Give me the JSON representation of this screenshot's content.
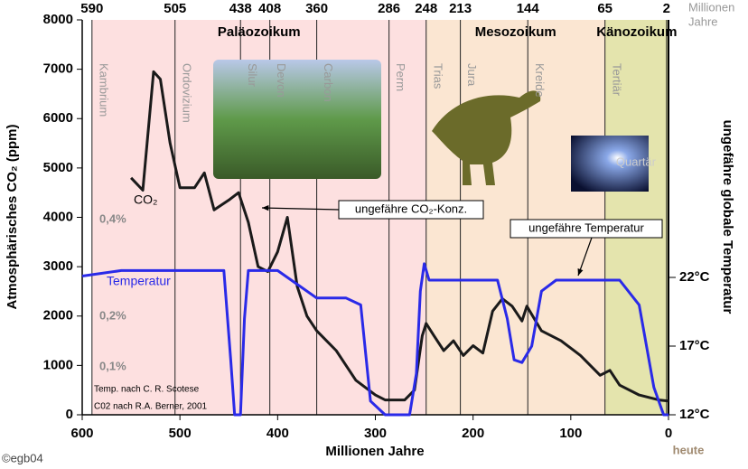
{
  "chart_data": {
    "type": "line",
    "xlabel": "Millionen Jahre",
    "ylabel": "Atmosphärisches CO₂ (ppm)",
    "y2label": "ungefähre globale Temperatur",
    "xlim": [
      600,
      0
    ],
    "xticks": [
      600,
      500,
      400,
      300,
      200,
      100,
      0
    ],
    "ylim": [
      0,
      8000
    ],
    "yticks": [
      0,
      1000,
      2000,
      3000,
      4000,
      5000,
      6000,
      7000,
      8000
    ],
    "y2lim": [
      12,
      40.75
    ],
    "y2ticks": [
      {
        "value": 12,
        "label": "12°C"
      },
      {
        "value": 17,
        "label": "17°C"
      },
      {
        "value": 22,
        "label": "22°C"
      }
    ],
    "top_ticks": [
      590,
      505,
      438,
      408,
      360,
      286,
      248,
      213,
      144,
      65,
      2
    ],
    "top_axis_label": [
      "Millionen",
      "Jahre"
    ],
    "x_end_label": "heute",
    "eras": [
      {
        "name": "Paläozoikum",
        "start": 590,
        "end": 248,
        "color": "#fde0e0"
      },
      {
        "name": "Mesozoikum",
        "start": 248,
        "end": 65,
        "color": "#fbe6d2"
      },
      {
        "name": "Känozoikum",
        "start": 65,
        "end": 0,
        "color": "#e4e4ad"
      }
    ],
    "periods": [
      "Kambrium",
      "Ordovizium",
      "Silur",
      "Devon",
      "Carbon",
      "Perm",
      "Trias",
      "Jura",
      "Kreide",
      "Tertiär",
      "Quartär"
    ],
    "series": [
      {
        "name": "CO₂",
        "color": "#1a1a1a",
        "x": [
          550,
          538,
          527,
          520,
          510,
          500,
          485,
          475,
          465,
          450,
          440,
          430,
          420,
          410,
          400,
          390,
          380,
          370,
          360,
          340,
          320,
          300,
          290,
          270,
          260,
          252,
          248,
          240,
          230,
          220,
          210,
          200,
          190,
          180,
          170,
          160,
          150,
          145,
          130,
          110,
          90,
          70,
          60,
          50,
          30,
          10,
          0
        ],
        "values": [
          4800,
          4550,
          6950,
          6800,
          5500,
          4600,
          4600,
          4900,
          4150,
          4350,
          4500,
          3900,
          3000,
          2900,
          3300,
          4000,
          2600,
          2000,
          1700,
          1300,
          700,
          400,
          300,
          300,
          500,
          1600,
          1850,
          1600,
          1300,
          1500,
          1200,
          1400,
          1250,
          2100,
          2350,
          2200,
          1900,
          2200,
          1700,
          1500,
          1200,
          800,
          900,
          600,
          400,
          300,
          280
        ]
      },
      {
        "name": "Temperatur",
        "color": "#2a2ae8",
        "axis": "y2",
        "x": [
          600,
          560,
          455,
          448,
          444,
          438,
          434,
          430,
          400,
          380,
          360,
          330,
          315,
          305,
          290,
          265,
          258,
          254,
          250,
          245,
          200,
          175,
          165,
          158,
          150,
          140,
          130,
          115,
          80,
          50,
          30,
          15,
          5,
          0
        ],
        "values": [
          22.1,
          22.5,
          22.5,
          16,
          12,
          12,
          19,
          22.5,
          22.5,
          21.5,
          20.5,
          20.5,
          20,
          13,
          12,
          12,
          15,
          21,
          23,
          21.8,
          21.8,
          21.8,
          19,
          16,
          15.8,
          17,
          21,
          21.8,
          21.8,
          21.8,
          20,
          14,
          12,
          12
        ]
      }
    ],
    "annotations": [
      "0,4%",
      "0,2%",
      "0,1%",
      "ungefähre CO₂-Konz.",
      "ungefähre Temperatur",
      "Temp. nach C. R. Scotese",
      "C02 nach R.A. Berner, 2001"
    ],
    "credit": "©egb04"
  }
}
